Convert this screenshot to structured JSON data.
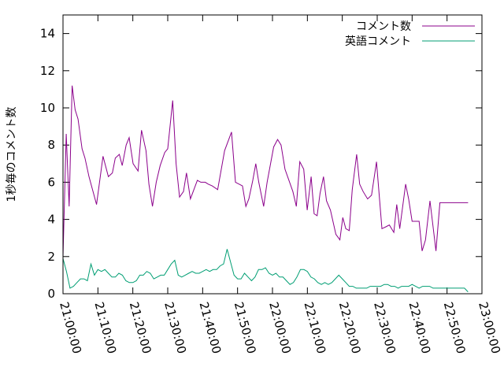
{
  "chart_data": {
    "type": "line",
    "title": "",
    "xlabel": "",
    "ylabel": "1秒毎のコメント数",
    "xlim": [
      "21:00:00",
      "23:00:00"
    ],
    "ylim": [
      0,
      15
    ],
    "x_ticks": [
      "21:00:00",
      "21:10:00",
      "21:20:00",
      "21:30:00",
      "21:40:00",
      "21:50:00",
      "22:00:00",
      "22:10:00",
      "22:20:00",
      "22:30:00",
      "22:40:00",
      "22:50:00",
      "23:00:00"
    ],
    "y_ticks": [
      0,
      2,
      4,
      6,
      8,
      10,
      12,
      14
    ],
    "grid": false,
    "legend": "top-right",
    "series": [
      {
        "name": "コメント数",
        "color": "#8b008b",
        "x": [
          "21:00:00",
          "21:00:55",
          "21:01:46",
          "21:02:37",
          "21:03:28",
          "21:04:19",
          "21:05:27",
          "21:06:18",
          "21:07:26",
          "21:09:36",
          "21:11:27",
          "21:13:00",
          "21:14:08",
          "21:14:59",
          "21:16:07",
          "21:16:58",
          "21:18:06",
          "21:18:57",
          "21:20:05",
          "21:21:30",
          "21:22:29",
          "21:23:46",
          "21:24:37",
          "21:25:37",
          "21:26:43",
          "21:27:50",
          "21:29:08",
          "21:30:00",
          "21:31:25",
          "21:32:24",
          "21:33:23",
          "21:34:31",
          "21:35:22",
          "21:36:30",
          "21:37:29",
          "21:38:29",
          "21:39:28",
          "21:40:44",
          "21:41:36",
          "21:42:44",
          "21:44:18",
          "21:46:17",
          "21:48:16",
          "21:49:24",
          "21:51:24",
          "21:52:23",
          "21:53:14",
          "21:54:22",
          "21:55:13",
          "21:56:04",
          "21:57:29",
          "21:58:28",
          "22:00:20",
          "22:01:28",
          "22:02:27",
          "22:03:35",
          "22:05:51",
          "22:06:50",
          "22:07:50",
          "22:08:57",
          "22:09:57",
          "22:11:05",
          "22:11:56",
          "22:12:47",
          "22:13:38",
          "22:14:37",
          "22:15:28",
          "22:16:36",
          "22:18:10",
          "22:19:18",
          "22:20:09",
          "22:21:00",
          "22:21:59",
          "22:22:51",
          "22:24:07",
          "22:24:58",
          "22:25:58",
          "22:27:15",
          "22:28:22",
          "22:29:48",
          "22:31:21",
          "22:32:29",
          "22:33:28",
          "22:34:45",
          "22:35:36",
          "22:36:27",
          "22:38:09",
          "22:39:00",
          "22:40:00",
          "22:41:25",
          "22:42:00",
          "22:42:51",
          "22:43:50",
          "22:45:07",
          "22:46:49",
          "22:47:57",
          "22:48:56",
          "22:49:56",
          "22:51:13",
          "22:52:03",
          "22:53:20",
          "22:54:12",
          "22:55:11",
          "22:56:02"
        ],
        "y": [
          2.0,
          8.6,
          4.7,
          11.2,
          9.9,
          9.4,
          7.8,
          7.3,
          6.3,
          4.8,
          7.4,
          6.3,
          6.5,
          7.3,
          7.5,
          6.9,
          8.0,
          8.4,
          7.0,
          6.6,
          8.8,
          7.7,
          5.9,
          4.7,
          6.0,
          6.9,
          7.6,
          7.8,
          10.4,
          7.0,
          5.2,
          5.5,
          6.5,
          5.1,
          5.6,
          6.1,
          6.0,
          6.0,
          5.9,
          5.8,
          5.6,
          7.7,
          8.7,
          6.0,
          5.8,
          4.7,
          5.1,
          6.1,
          7.0,
          6.0,
          4.7,
          6.0,
          7.9,
          8.3,
          8.0,
          6.7,
          5.5,
          4.7,
          7.1,
          6.7,
          4.5,
          6.3,
          4.3,
          4.2,
          5.4,
          6.3,
          5.0,
          4.5,
          3.2,
          2.9,
          4.1,
          3.5,
          3.4,
          5.6,
          7.5,
          5.9,
          5.5,
          5.1,
          5.3,
          7.1,
          3.5,
          3.6,
          3.7,
          3.3,
          4.8,
          3.5,
          5.9,
          5.1,
          3.9,
          3.9,
          3.9,
          2.3,
          2.9,
          5.0,
          2.3,
          4.9,
          4.9,
          4.9,
          4.9,
          4.9,
          4.9,
          4.9,
          4.9,
          4.9
        ]
      },
      {
        "name": "英語コメント",
        "color": "#009e73",
        "x": [
          "21:00:00",
          "21:01:00",
          "21:02:00",
          "21:03:00",
          "21:04:00",
          "21:05:00",
          "21:06:00",
          "21:07:00",
          "21:08:00",
          "21:09:00",
          "21:10:00",
          "21:11:00",
          "21:12:00",
          "21:13:00",
          "21:14:00",
          "21:15:00",
          "21:16:00",
          "21:17:00",
          "21:18:00",
          "21:19:00",
          "21:20:00",
          "21:21:00",
          "21:22:00",
          "21:23:00",
          "21:24:00",
          "21:25:00",
          "21:26:00",
          "21:27:00",
          "21:28:00",
          "21:29:00",
          "21:30:00",
          "21:31:00",
          "21:32:00",
          "21:33:00",
          "21:34:00",
          "21:35:00",
          "21:36:00",
          "21:37:00",
          "21:38:00",
          "21:39:00",
          "21:40:00",
          "21:41:00",
          "21:42:00",
          "21:43:00",
          "21:44:00",
          "21:45:00",
          "21:46:00",
          "21:47:00",
          "21:48:00",
          "21:49:00",
          "21:50:00",
          "21:51:00",
          "21:52:00",
          "21:53:00",
          "21:54:00",
          "21:55:00",
          "21:56:00",
          "21:57:00",
          "21:58:00",
          "21:59:00",
          "22:00:00",
          "22:01:00",
          "22:02:00",
          "22:03:00",
          "22:04:00",
          "22:05:00",
          "22:06:00",
          "22:07:00",
          "22:08:00",
          "22:09:00",
          "22:10:00",
          "22:11:00",
          "22:12:00",
          "22:13:00",
          "22:14:00",
          "22:15:00",
          "22:16:00",
          "22:17:00",
          "22:18:00",
          "22:19:00",
          "22:20:00",
          "22:21:00",
          "22:22:00",
          "22:23:00",
          "22:24:00",
          "22:25:00",
          "22:26:00",
          "22:27:00",
          "22:28:00",
          "22:29:00",
          "22:30:00",
          "22:31:00",
          "22:32:00",
          "22:33:00",
          "22:34:00",
          "22:35:00",
          "22:36:00",
          "22:37:00",
          "22:38:00",
          "22:39:00",
          "22:40:00",
          "22:41:00",
          "22:42:00",
          "22:43:00",
          "22:44:00",
          "22:45:00",
          "22:46:00",
          "22:47:00",
          "22:48:00",
          "22:49:00",
          "22:50:00",
          "22:51:00",
          "22:52:00",
          "22:53:00",
          "22:54:00",
          "22:55:00",
          "22:56:00"
        ],
        "y": [
          1.9,
          1.2,
          0.3,
          0.4,
          0.6,
          0.8,
          0.8,
          0.7,
          1.6,
          1.0,
          1.3,
          1.2,
          1.3,
          1.1,
          0.9,
          0.9,
          1.1,
          1.0,
          0.7,
          0.6,
          0.6,
          0.7,
          1.0,
          1.0,
          1.2,
          1.1,
          0.8,
          0.9,
          1.0,
          1.0,
          1.3,
          1.6,
          1.8,
          1.0,
          0.9,
          1.0,
          1.1,
          1.2,
          1.1,
          1.1,
          1.2,
          1.3,
          1.2,
          1.3,
          1.3,
          1.5,
          1.6,
          2.4,
          1.7,
          1.0,
          0.8,
          0.8,
          1.1,
          0.9,
          0.7,
          0.9,
          1.3,
          1.3,
          1.4,
          1.1,
          1.0,
          1.1,
          0.9,
          0.9,
          0.7,
          0.5,
          0.6,
          0.9,
          1.3,
          1.3,
          1.2,
          0.9,
          0.8,
          0.6,
          0.5,
          0.6,
          0.5,
          0.6,
          0.8,
          1.0,
          0.8,
          0.6,
          0.4,
          0.4,
          0.3,
          0.3,
          0.3,
          0.3,
          0.4,
          0.4,
          0.4,
          0.4,
          0.5,
          0.5,
          0.4,
          0.4,
          0.3,
          0.4,
          0.4,
          0.4,
          0.5,
          0.4,
          0.3,
          0.4,
          0.4,
          0.4,
          0.3,
          0.3,
          0.3,
          0.3,
          0.3,
          0.3,
          0.3,
          0.3,
          0.3,
          0.3,
          0.1
        ]
      }
    ]
  }
}
